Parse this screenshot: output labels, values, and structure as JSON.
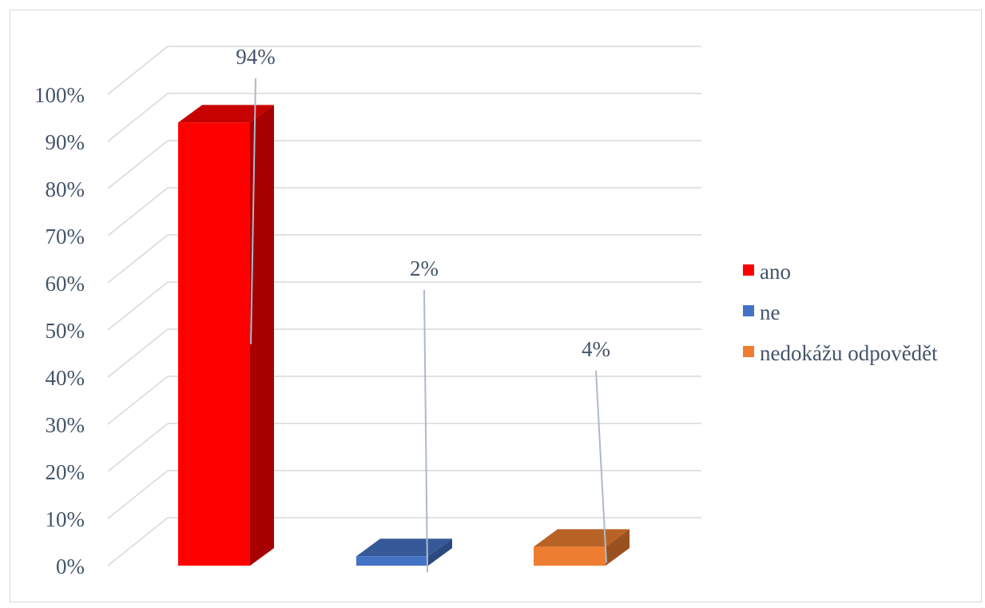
{
  "chart_data": {
    "type": "bar",
    "style": "3d-column",
    "categories": [
      "ano",
      "ne",
      "nedokážu odpovědět"
    ],
    "values": [
      94,
      2,
      4
    ],
    "data_labels": [
      "94%",
      "2%",
      "4%"
    ],
    "colors": [
      "#ff0000",
      "#4472c4",
      "#ed7d31"
    ],
    "ylim": [
      0,
      100
    ],
    "y_ticks": [
      "0%",
      "10%",
      "20%",
      "30%",
      "40%",
      "50%",
      "60%",
      "70%",
      "80%",
      "90%",
      "100%"
    ],
    "grid": true,
    "legend": {
      "position": "right",
      "entries": [
        "ano",
        "ne",
        "nedokážu odpovědět"
      ]
    },
    "title": "",
    "xlabel": "",
    "ylabel": ""
  }
}
